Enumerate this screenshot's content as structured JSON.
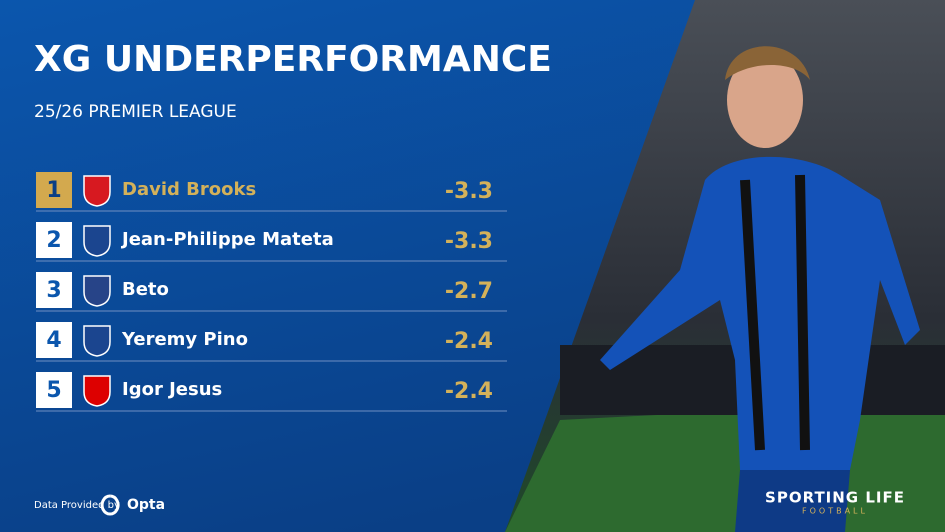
{
  "header": {
    "title": "XG UNDERPERFORMANCE",
    "subtitle": "25/26 PREMIER LEAGUE"
  },
  "table": {
    "rows": [
      {
        "rank": 1,
        "player": "David Brooks",
        "value": -3.3
      },
      {
        "rank": 2,
        "player": "Jean-Philippe Mateta",
        "value": -3.3
      },
      {
        "rank": 3,
        "player": "Beto",
        "value": -2.7
      },
      {
        "rank": 4,
        "player": "Yeremy Pino",
        "value": -2.4
      },
      {
        "rank": 5,
        "player": "Igor Jesus",
        "value": -2.4
      }
    ]
  },
  "footer": {
    "credit": "Data Provided by",
    "provider": "Opta",
    "brand": "SPORTING LIFE",
    "brand_sub": "FOOTBALL"
  }
}
